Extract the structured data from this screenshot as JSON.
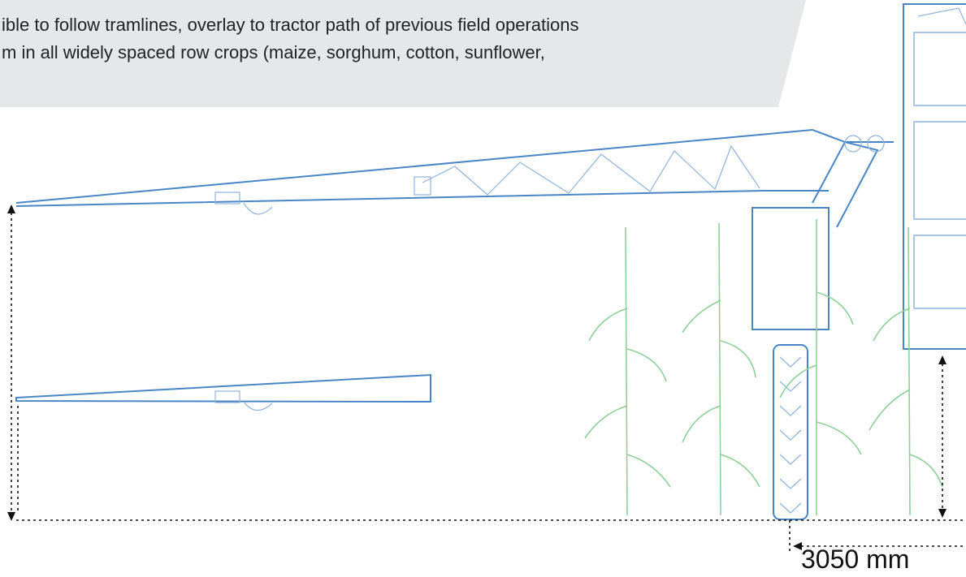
{
  "banner": {
    "lines": [
      "ible to follow tramlines, overlay to tractor path of previous field operations",
      "m in all widely spaced row crops (maize, sorghum, cotton, sunflower,"
    ]
  },
  "dimensions": {
    "track_width": "3050 mm"
  }
}
